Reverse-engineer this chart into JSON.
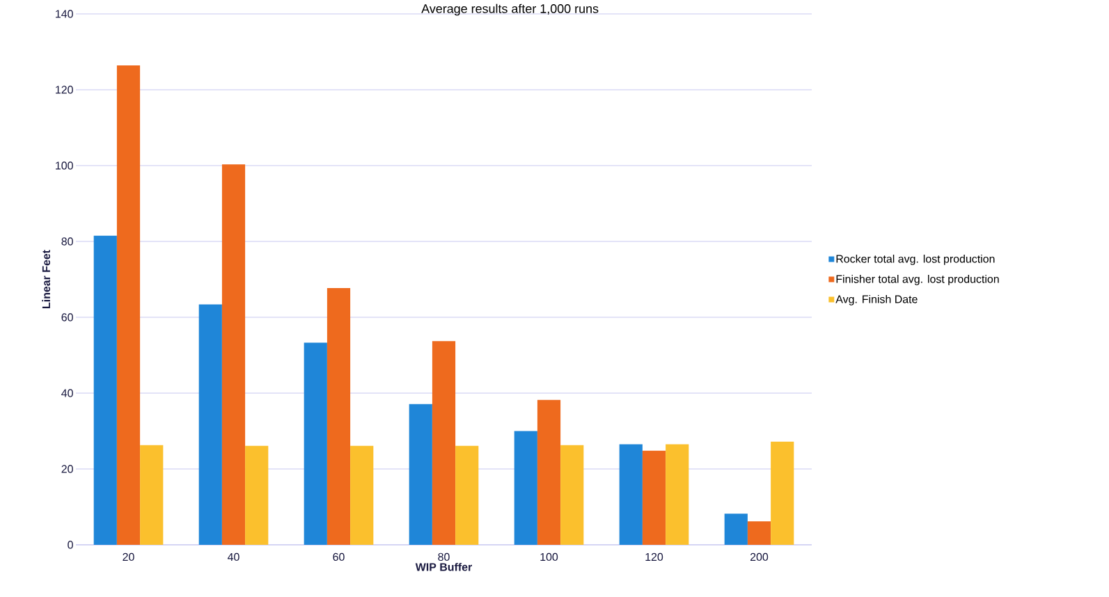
{
  "chart_data": {
    "type": "bar",
    "title": "Average results after 1,000 runs",
    "xlabel": "WIP Buffer",
    "ylabel": "Linear Feet",
    "categories": [
      "20",
      "40",
      "60",
      "80",
      "100",
      "120",
      "200"
    ],
    "series": [
      {
        "name": "Rocker total avg. lost production",
        "color": "#1f86d8",
        "values": [
          81.5,
          63.4,
          53.3,
          37.1,
          30.0,
          26.5,
          8.2
        ]
      },
      {
        "name": "Finisher total avg. lost production",
        "color": "#ee6a1e",
        "values": [
          126.4,
          100.3,
          67.7,
          53.7,
          38.2,
          24.8,
          6.2
        ]
      },
      {
        "name": "Avg. Finish Date",
        "color": "#fbc02d",
        "values": [
          26.3,
          26.1,
          26.1,
          26.1,
          26.3,
          26.5,
          27.2
        ]
      }
    ],
    "ylim": [
      0,
      140
    ],
    "yticks": [
      0,
      20,
      40,
      60,
      80,
      100,
      120,
      140
    ],
    "grid": "y",
    "legend": "right"
  }
}
